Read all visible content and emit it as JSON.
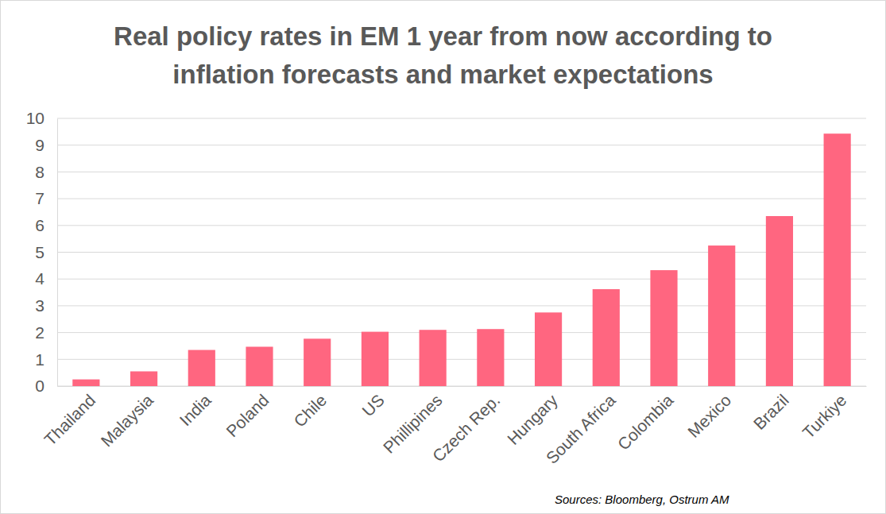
{
  "chart_data": {
    "type": "bar",
    "title": "Real policy rates in EM 1 year from now according to inflation forecasts and market expectations",
    "categories": [
      "Thailand",
      "Malaysia",
      "India",
      "Poland",
      "Chile",
      "US",
      "Phillipines",
      "Czech Rep.",
      "Hungary",
      "South Africa",
      "Colombia",
      "Mexico",
      "Brazil",
      "Turkiye"
    ],
    "values": [
      0.25,
      0.55,
      1.35,
      1.47,
      1.77,
      2.03,
      2.1,
      2.13,
      2.75,
      3.62,
      4.33,
      5.25,
      6.35,
      9.43
    ],
    "color": "#ff6680",
    "ylim": [
      0,
      10
    ],
    "yticks": [
      0,
      1,
      2,
      3,
      4,
      5,
      6,
      7,
      8,
      9,
      10
    ],
    "grid": true,
    "source": "Sources: Bloomberg, Ostrum AM"
  }
}
